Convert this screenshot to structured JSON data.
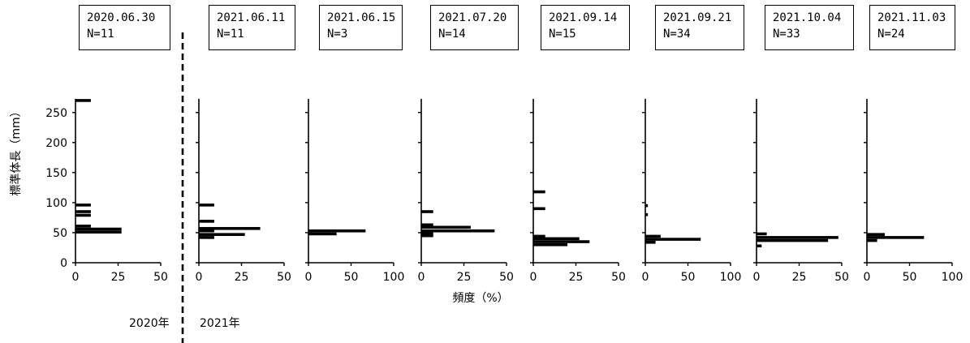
{
  "chart_data": {
    "type": "bar",
    "orientation": "horizontal",
    "ylabel": "標準体長（mm）",
    "xlabel": "頻度（%）",
    "ylim": [
      0,
      270
    ],
    "yticks": [
      0,
      50,
      100,
      150,
      200,
      250
    ],
    "year_labels": [
      "2020年",
      "2021年"
    ],
    "panels": [
      {
        "date": "2020.06.30",
        "n": "N=11",
        "xmax": 50,
        "xticks": [
          0,
          25,
          50
        ],
        "bars": [
          {
            "y": 51,
            "value": 27
          },
          {
            "y": 56,
            "value": 27
          },
          {
            "y": 61,
            "value": 9
          },
          {
            "y": 79,
            "value": 9
          },
          {
            "y": 85,
            "value": 9
          },
          {
            "y": 96,
            "value": 9
          },
          {
            "y": 270,
            "value": 9
          }
        ]
      },
      {
        "date": "2021.06.11",
        "n": "N=11",
        "xmax": 50,
        "xticks": [
          0,
          25,
          50
        ],
        "bars": [
          {
            "y": 42,
            "value": 9
          },
          {
            "y": 47,
            "value": 27
          },
          {
            "y": 53,
            "value": 9
          },
          {
            "y": 57,
            "value": 36
          },
          {
            "y": 69,
            "value": 9
          },
          {
            "y": 96,
            "value": 9
          }
        ]
      },
      {
        "date": "2021.06.15",
        "n": "N=3",
        "xmax": 100,
        "xticks": [
          0,
          50,
          100
        ],
        "bars": [
          {
            "y": 48,
            "value": 33
          },
          {
            "y": 53,
            "value": 67
          }
        ]
      },
      {
        "date": "2021.07.20",
        "n": "N=14",
        "xmax": 50,
        "xticks": [
          0,
          25,
          50
        ],
        "bars": [
          {
            "y": 45,
            "value": 7
          },
          {
            "y": 49,
            "value": 7
          },
          {
            "y": 53,
            "value": 43
          },
          {
            "y": 59,
            "value": 29
          },
          {
            "y": 63,
            "value": 7
          },
          {
            "y": 85,
            "value": 7
          }
        ]
      },
      {
        "date": "2021.09.14",
        "n": "N=15",
        "xmax": 50,
        "xticks": [
          0,
          25,
          50
        ],
        "bars": [
          {
            "y": 30,
            "value": 20
          },
          {
            "y": 35,
            "value": 33
          },
          {
            "y": 40,
            "value": 27
          },
          {
            "y": 44,
            "value": 7
          },
          {
            "y": 90,
            "value": 7
          },
          {
            "y": 118,
            "value": 7
          }
        ]
      },
      {
        "date": "2021.09.21",
        "n": "N=34",
        "xmax": 100,
        "xticks": [
          0,
          50,
          100
        ],
        "bars": [
          {
            "y": 34,
            "value": 12
          },
          {
            "y": 39,
            "value": 65
          },
          {
            "y": 44,
            "value": 18
          },
          {
            "y": 80,
            "value": 3
          },
          {
            "y": 95,
            "value": 3
          }
        ]
      },
      {
        "date": "2021.10.04",
        "n": "N=33",
        "xmax": 50,
        "xticks": [
          0,
          25,
          50
        ],
        "bars": [
          {
            "y": 28,
            "value": 3
          },
          {
            "y": 37,
            "value": 42
          },
          {
            "y": 42,
            "value": 48
          },
          {
            "y": 48,
            "value": 6
          }
        ]
      },
      {
        "date": "2021.11.03",
        "n": "N=24",
        "xmax": 100,
        "xticks": [
          0,
          50,
          100
        ],
        "bars": [
          {
            "y": 37,
            "value": 12
          },
          {
            "y": 42,
            "value": 67
          },
          {
            "y": 47,
            "value": 21
          }
        ]
      }
    ]
  }
}
